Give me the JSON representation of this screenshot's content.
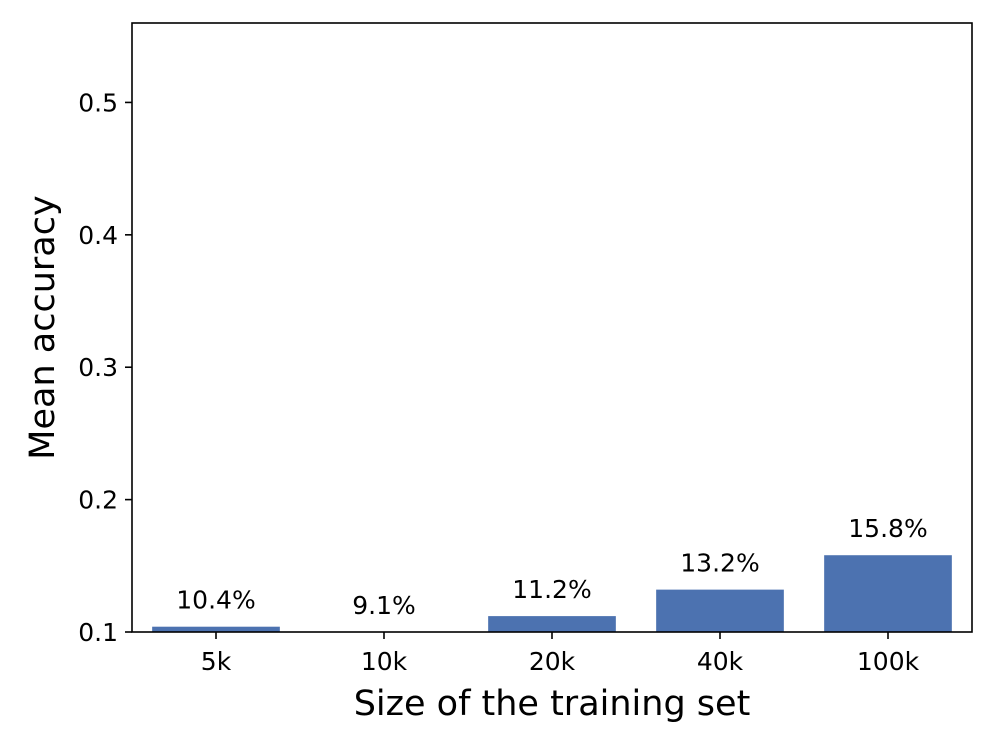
{
  "chart_data": {
    "type": "bar",
    "title": "",
    "xlabel": "Size of the training set",
    "ylabel": "Mean accuracy",
    "categories": [
      "5k",
      "10k",
      "20k",
      "40k",
      "100k"
    ],
    "values": [
      0.104,
      0.091,
      0.112,
      0.132,
      0.158
    ],
    "data_labels": [
      "10.4%",
      "9.1%",
      "11.2%",
      "13.2%",
      "15.8%"
    ],
    "ylim": [
      0.1,
      0.56
    ],
    "yticks": [
      0.1,
      0.2,
      0.3,
      0.4,
      0.5
    ],
    "ytick_labels": [
      "0.1",
      "0.2",
      "0.3",
      "0.4",
      "0.5"
    ],
    "bar_color": "#4c72b0",
    "grid": false,
    "legend": "none"
  }
}
